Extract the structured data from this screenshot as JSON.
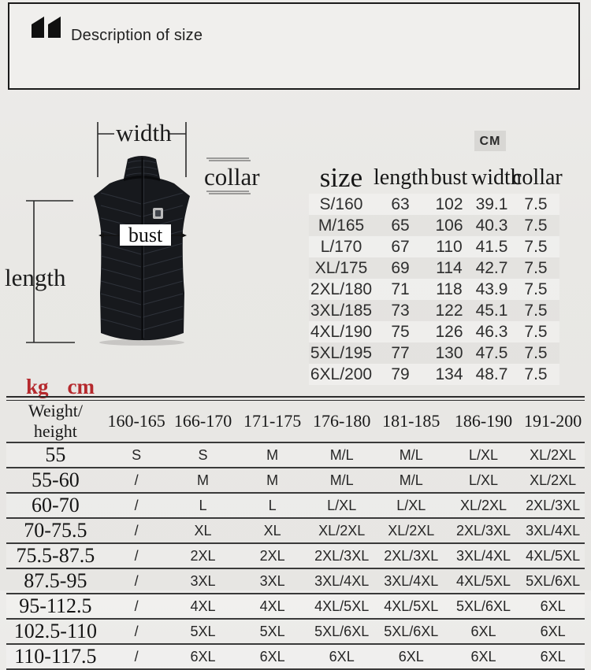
{
  "header": {
    "title": "Description of size",
    "icon": "quote-marks"
  },
  "diagram": {
    "labels": {
      "width": "width",
      "collar": "collar",
      "bust": "bust",
      "length": "length"
    },
    "units": {
      "kg": "kg",
      "cm": "cm"
    },
    "unit_badge": "CM"
  },
  "size_table": {
    "columns": [
      "size",
      "length",
      "bust",
      "width",
      "collar"
    ],
    "rows": [
      [
        "S/160",
        "63",
        "102",
        "39.1",
        "7.5"
      ],
      [
        "M/165",
        "65",
        "106",
        "40.3",
        "7.5"
      ],
      [
        "L/170",
        "67",
        "110",
        "41.5",
        "7.5"
      ],
      [
        "XL/175",
        "69",
        "114",
        "42.7",
        "7.5"
      ],
      [
        "2XL/180",
        "71",
        "118",
        "43.9",
        "7.5"
      ],
      [
        "3XL/185",
        "73",
        "122",
        "45.1",
        "7.5"
      ],
      [
        "4XL/190",
        "75",
        "126",
        "46.3",
        "7.5"
      ],
      [
        "5XL/195",
        "77",
        "130",
        "47.5",
        "7.5"
      ],
      [
        "6XL/200",
        "79",
        "134",
        "48.7",
        "7.5"
      ]
    ]
  },
  "weight_height_table": {
    "columns": [
      "Weight/ height",
      "160-165",
      "166-170",
      "171-175",
      "176-180",
      "181-185",
      "186-190",
      "191-200"
    ],
    "rows": [
      [
        "55",
        "S",
        "S",
        "M",
        "M/L",
        "M/L",
        "L/XL",
        "XL/2XL"
      ],
      [
        "55-60",
        "/",
        "M",
        "M",
        "M/L",
        "M/L",
        "L/XL",
        "XL/2XL"
      ],
      [
        "60-70",
        "/",
        "L",
        "L",
        "L/XL",
        "L/XL",
        "XL/2XL",
        "2XL/3XL"
      ],
      [
        "70-75.5",
        "/",
        "XL",
        "XL",
        "XL/2XL",
        "XL/2XL",
        "2XL/3XL",
        "3XL/4XL"
      ],
      [
        "75.5-87.5",
        "/",
        "2XL",
        "2XL",
        "2XL/3XL",
        "2XL/3XL",
        "3XL/4XL",
        "4XL/5XL"
      ],
      [
        "87.5-95",
        "/",
        "3XL",
        "3XL",
        "3XL/4XL",
        "3XL/4XL",
        "4XL/5XL",
        "5XL/6XL"
      ],
      [
        "95-112.5",
        "/",
        "4XL",
        "4XL",
        "4XL/5XL",
        "4XL/5XL",
        "5XL/6XL",
        "6XL"
      ],
      [
        "102.5-110",
        "/",
        "5XL",
        "5XL",
        "5XL/6XL",
        "5XL/6XL",
        "6XL",
        "6XL"
      ],
      [
        "110-117.5",
        "/",
        "6XL",
        "6XL",
        "6XL",
        "6XL",
        "6XL",
        "6XL"
      ]
    ]
  },
  "colors": {
    "accent_red": "#b5292d",
    "vest_black": "#17191d",
    "line_dark": "#2b2b2b"
  }
}
